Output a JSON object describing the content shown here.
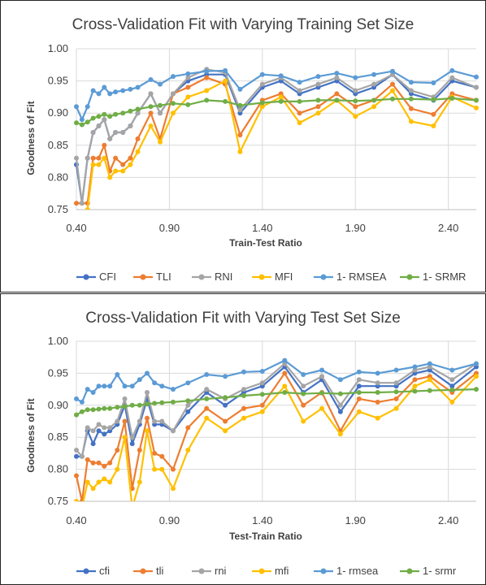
{
  "chart_data": [
    {
      "type": "line",
      "title": "Cross-Validation Fit with Varying Training Set Size",
      "xlabel": "Train-Test Ratio",
      "ylabel": "Goodness of Fit",
      "xlim": [
        0.4,
        2.55
      ],
      "ylim": [
        0.75,
        1.0
      ],
      "x_ticks": [
        "0.40",
        "0.90",
        "1.40",
        "1.90",
        "2.40"
      ],
      "y_ticks": [
        "0.75",
        "0.80",
        "0.85",
        "0.90",
        "0.95",
        "1.00"
      ],
      "grid": true,
      "legend_position": "bottom",
      "x": [
        0.4,
        0.43,
        0.46,
        0.49,
        0.52,
        0.55,
        0.58,
        0.61,
        0.65,
        0.69,
        0.73,
        0.8,
        0.85,
        0.92,
        1.0,
        1.1,
        1.2,
        1.28,
        1.4,
        1.5,
        1.6,
        1.7,
        1.8,
        1.9,
        2.0,
        2.1,
        2.2,
        2.32,
        2.42,
        2.55
      ],
      "series": [
        {
          "name": "CFI",
          "color": "#4472c4",
          "values": [
            0.82,
            0.76,
            0.83,
            0.87,
            0.88,
            0.89,
            0.86,
            0.87,
            0.87,
            0.88,
            0.9,
            0.93,
            0.9,
            0.93,
            0.95,
            0.96,
            0.96,
            0.9,
            0.94,
            0.95,
            0.93,
            0.94,
            0.95,
            0.93,
            0.94,
            0.96,
            0.93,
            0.92,
            0.95,
            0.94
          ]
        },
        {
          "name": "TLI",
          "color": "#ed7d31",
          "values": [
            0.76,
            0.76,
            0.76,
            0.83,
            0.83,
            0.85,
            0.81,
            0.83,
            0.82,
            0.83,
            0.86,
            0.9,
            0.86,
            0.93,
            0.94,
            0.955,
            0.945,
            0.866,
            0.92,
            0.93,
            0.9,
            0.91,
            0.93,
            0.91,
            0.92,
            0.945,
            0.907,
            0.898,
            0.93,
            0.92
          ]
        },
        {
          "name": "RNI",
          "color": "#a5a5a5",
          "values": [
            0.83,
            0.76,
            0.83,
            0.87,
            0.88,
            0.89,
            0.86,
            0.87,
            0.87,
            0.88,
            0.9,
            0.93,
            0.9,
            0.93,
            0.955,
            0.968,
            0.963,
            0.905,
            0.945,
            0.955,
            0.935,
            0.945,
            0.955,
            0.935,
            0.945,
            0.96,
            0.935,
            0.925,
            0.955,
            0.94
          ]
        },
        {
          "name": "MFI",
          "color": "#ffc000",
          "values": [
            0.74,
            0.74,
            0.75,
            0.82,
            0.82,
            0.83,
            0.8,
            0.81,
            0.81,
            0.82,
            0.84,
            0.88,
            0.855,
            0.9,
            0.925,
            0.935,
            0.95,
            0.84,
            0.91,
            0.925,
            0.885,
            0.9,
            0.92,
            0.895,
            0.91,
            0.935,
            0.887,
            0.88,
            0.925,
            0.908
          ]
        },
        {
          "name": "1- RMSEA",
          "color": "#5b9bd5",
          "values": [
            0.91,
            0.89,
            0.91,
            0.935,
            0.93,
            0.94,
            0.93,
            0.933,
            0.935,
            0.937,
            0.94,
            0.952,
            0.945,
            0.957,
            0.961,
            0.965,
            0.966,
            0.937,
            0.96,
            0.958,
            0.948,
            0.957,
            0.962,
            0.955,
            0.96,
            0.965,
            0.948,
            0.947,
            0.966,
            0.956
          ]
        },
        {
          "name": "1- SRMR",
          "color": "#70ad47",
          "values": [
            0.885,
            0.882,
            0.886,
            0.892,
            0.895,
            0.898,
            0.895,
            0.898,
            0.9,
            0.903,
            0.906,
            0.91,
            0.912,
            0.915,
            0.913,
            0.92,
            0.918,
            0.912,
            0.916,
            0.918,
            0.918,
            0.92,
            0.92,
            0.919,
            0.92,
            0.922,
            0.922,
            0.921,
            0.923,
            0.92
          ]
        }
      ]
    },
    {
      "type": "line",
      "title": "Cross-Validation Fit with Varying Test Set Size",
      "xlabel": "Test-Train Ratio",
      "ylabel": "Goodness of Fit",
      "xlim": [
        0.4,
        2.55
      ],
      "ylim": [
        0.75,
        1.0
      ],
      "x_ticks": [
        "0.40",
        "0.90",
        "1.40",
        "1.90",
        "2.40"
      ],
      "y_ticks": [
        "0.75",
        "0.80",
        "0.85",
        "0.90",
        "0.95",
        "1.00"
      ],
      "grid": true,
      "legend_position": "bottom",
      "x": [
        0.4,
        0.43,
        0.46,
        0.49,
        0.52,
        0.55,
        0.58,
        0.62,
        0.66,
        0.7,
        0.74,
        0.78,
        0.82,
        0.86,
        0.92,
        1.0,
        1.1,
        1.2,
        1.3,
        1.4,
        1.52,
        1.62,
        1.72,
        1.82,
        1.92,
        2.02,
        2.12,
        2.22,
        2.3,
        2.42,
        2.55
      ],
      "series": [
        {
          "name": "cfi",
          "color": "#4472c4",
          "values": [
            0.82,
            0.82,
            0.86,
            0.84,
            0.86,
            0.855,
            0.86,
            0.87,
            0.9,
            0.84,
            0.87,
            0.91,
            0.87,
            0.87,
            0.86,
            0.89,
            0.92,
            0.9,
            0.92,
            0.93,
            0.96,
            0.92,
            0.94,
            0.89,
            0.93,
            0.93,
            0.93,
            0.95,
            0.955,
            0.93,
            0.96
          ]
        },
        {
          "name": "tli",
          "color": "#ed7d31",
          "values": [
            0.79,
            0.75,
            0.815,
            0.81,
            0.81,
            0.805,
            0.81,
            0.83,
            0.875,
            0.77,
            0.83,
            0.88,
            0.825,
            0.82,
            0.8,
            0.865,
            0.895,
            0.875,
            0.895,
            0.9,
            0.95,
            0.9,
            0.92,
            0.86,
            0.91,
            0.905,
            0.91,
            0.94,
            0.945,
            0.92,
            0.95
          ]
        },
        {
          "name": "rni",
          "color": "#a5a5a5",
          "values": [
            0.83,
            0.82,
            0.865,
            0.86,
            0.87,
            0.865,
            0.865,
            0.875,
            0.91,
            0.85,
            0.875,
            0.92,
            0.875,
            0.875,
            0.86,
            0.9,
            0.925,
            0.91,
            0.925,
            0.935,
            0.965,
            0.93,
            0.945,
            0.9,
            0.94,
            0.935,
            0.935,
            0.955,
            0.96,
            0.94,
            0.965
          ]
        },
        {
          "name": "mfi",
          "color": "#ffc000",
          "values": [
            0.75,
            0.74,
            0.78,
            0.77,
            0.78,
            0.785,
            0.78,
            0.8,
            0.85,
            0.74,
            0.78,
            0.86,
            0.8,
            0.8,
            0.77,
            0.83,
            0.88,
            0.86,
            0.88,
            0.89,
            0.93,
            0.875,
            0.895,
            0.855,
            0.89,
            0.88,
            0.895,
            0.93,
            0.94,
            0.905,
            0.945
          ]
        },
        {
          "name": "1- rmsea",
          "color": "#5b9bd5",
          "values": [
            0.91,
            0.905,
            0.925,
            0.92,
            0.93,
            0.93,
            0.93,
            0.948,
            0.93,
            0.93,
            0.94,
            0.95,
            0.935,
            0.93,
            0.925,
            0.935,
            0.948,
            0.945,
            0.952,
            0.953,
            0.97,
            0.948,
            0.955,
            0.94,
            0.952,
            0.95,
            0.955,
            0.96,
            0.965,
            0.955,
            0.965
          ]
        },
        {
          "name": "1- srmr",
          "color": "#70ad47",
          "values": [
            0.885,
            0.89,
            0.893,
            0.893,
            0.894,
            0.895,
            0.895,
            0.897,
            0.898,
            0.9,
            0.9,
            0.902,
            0.903,
            0.904,
            0.905,
            0.907,
            0.91,
            0.912,
            0.915,
            0.917,
            0.92,
            0.918,
            0.919,
            0.918,
            0.92,
            0.92,
            0.921,
            0.922,
            0.923,
            0.924,
            0.925
          ]
        }
      ]
    }
  ]
}
